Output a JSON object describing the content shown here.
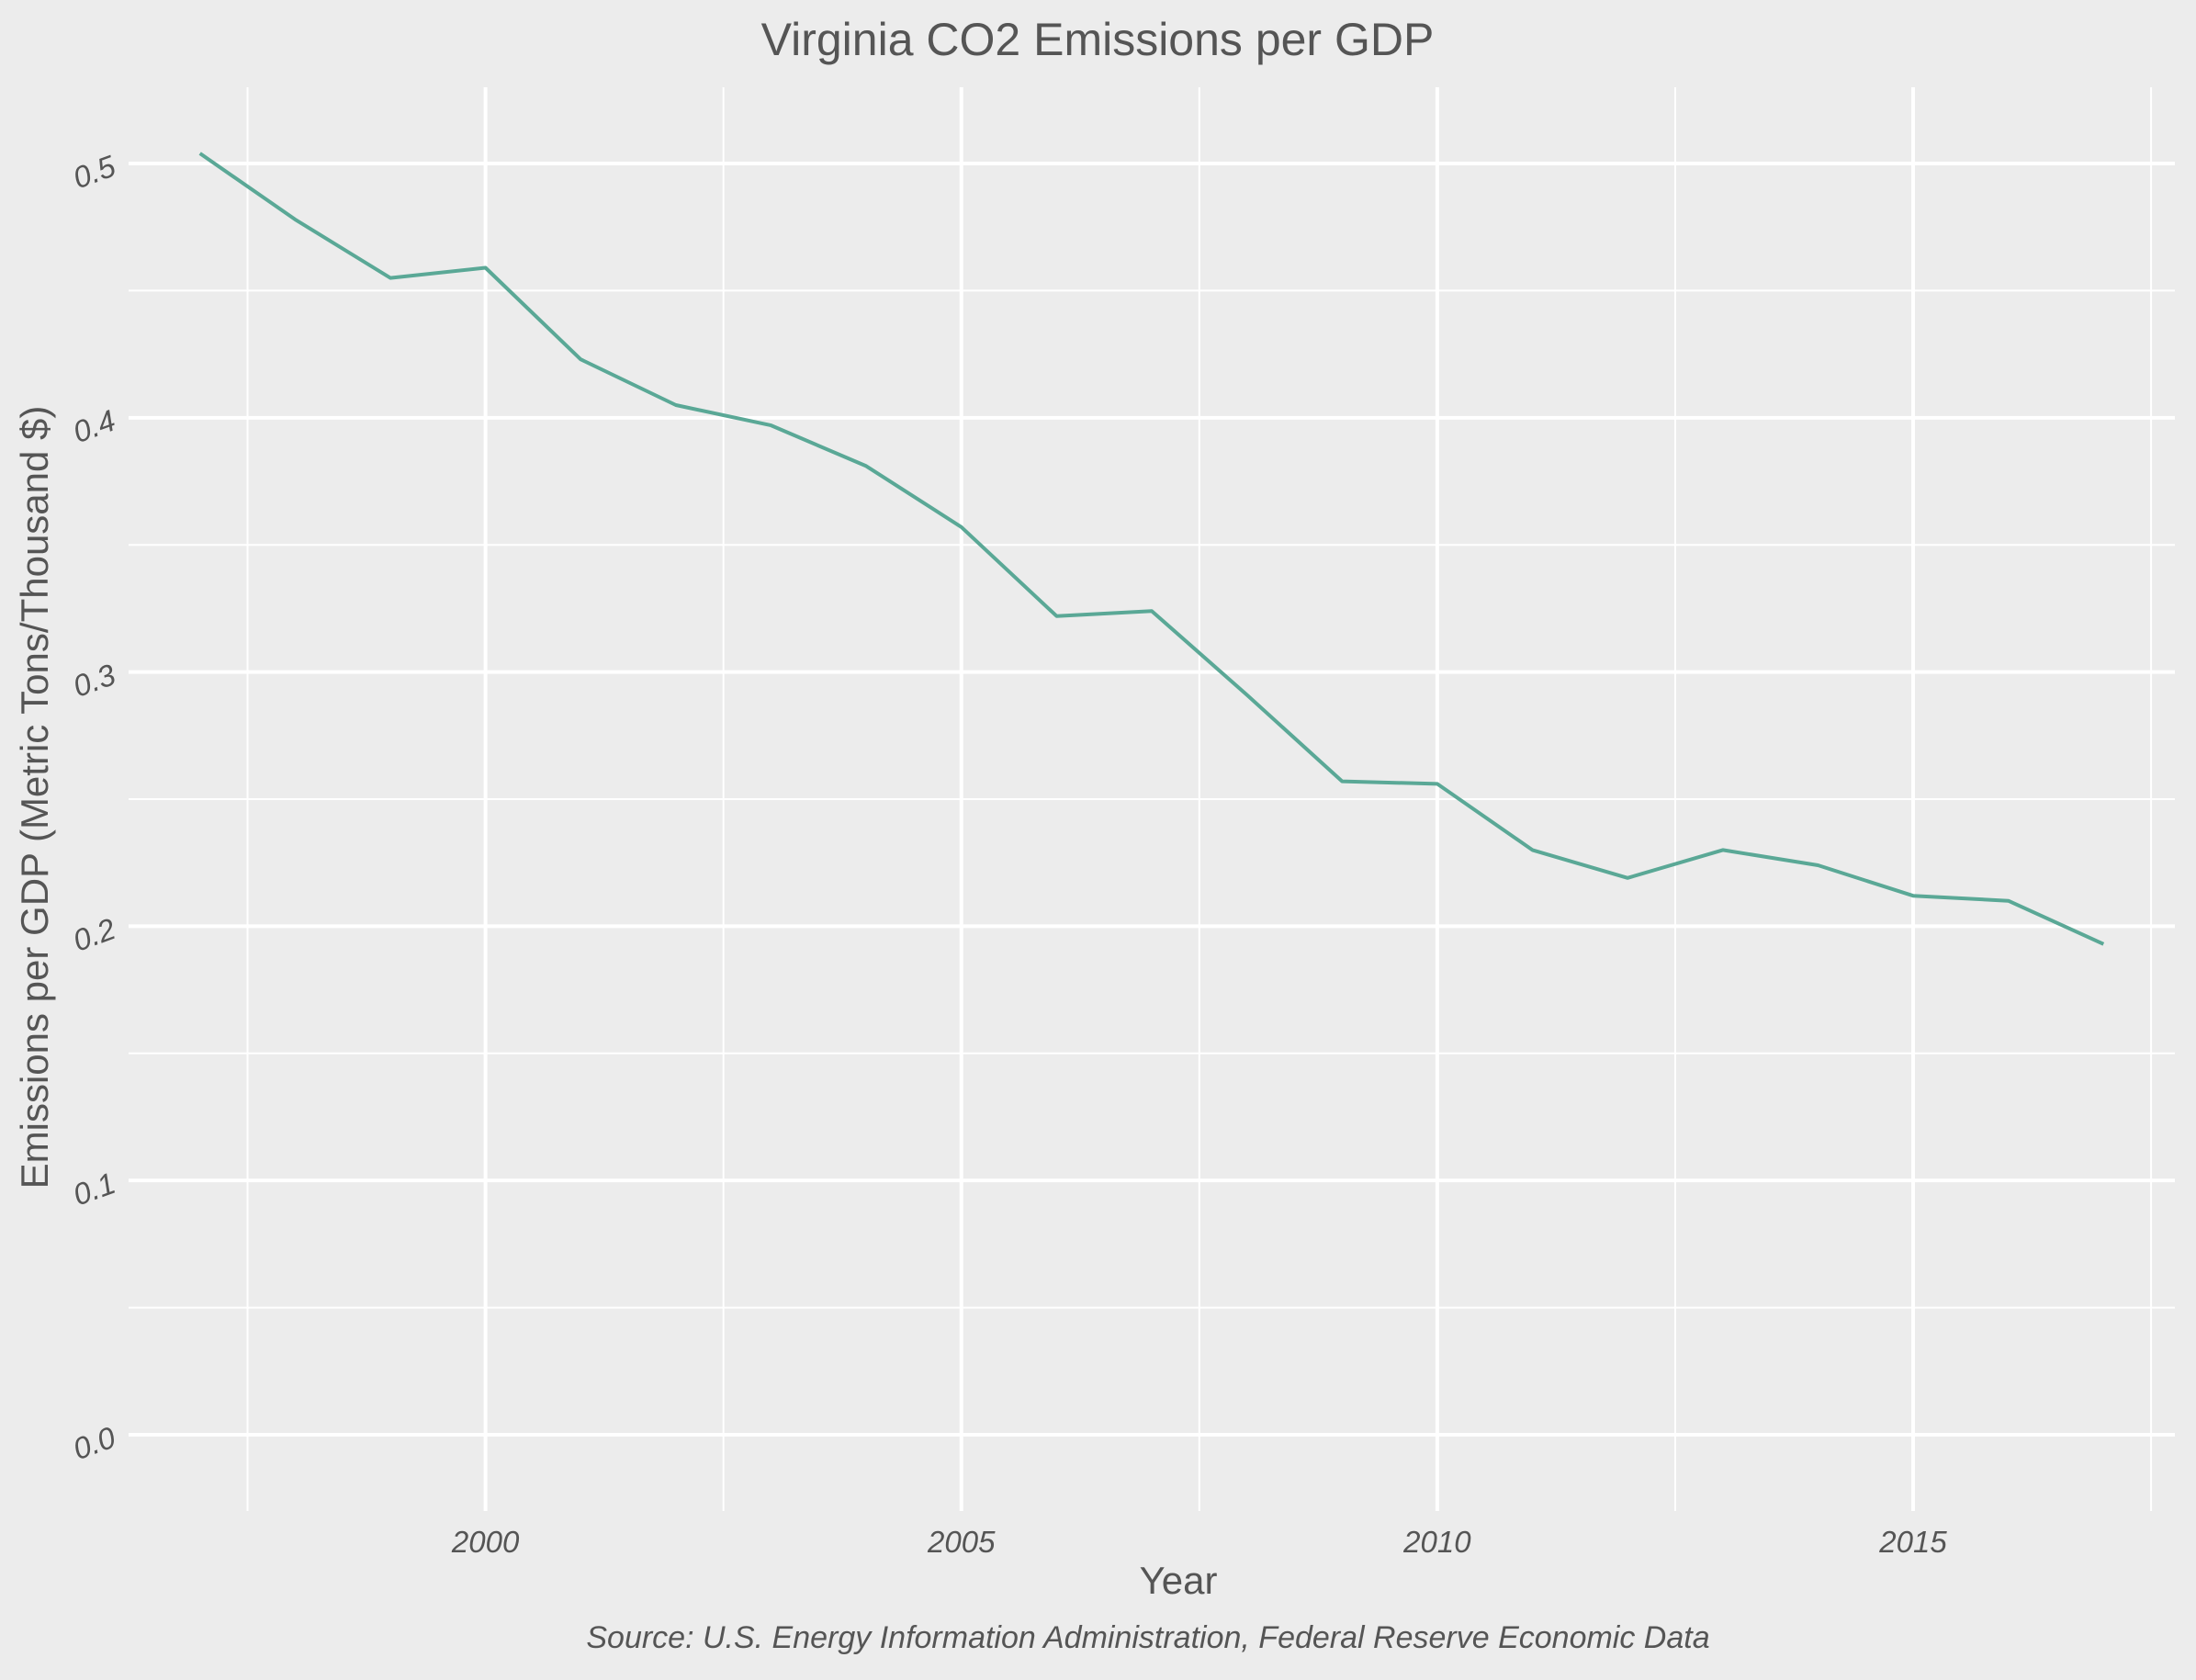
{
  "chart_data": {
    "type": "line",
    "title": "Virginia CO2 Emissions per GDP",
    "xlabel": "Year",
    "ylabel": "Emissions per GDP (Metric Tons/Thousand $)",
    "caption": "Source: U.S. Energy Information Administration, Federal Reserve Economic Data",
    "xlim": [
      1996.25,
      2017.75
    ],
    "ylim": [
      -0.03,
      0.53
    ],
    "x_ticks": [
      2000,
      2005,
      2010,
      2015
    ],
    "y_ticks": [
      0.0,
      0.1,
      0.2,
      0.3,
      0.4,
      0.5
    ],
    "x_tick_labels": [
      "2000",
      "2005",
      "2010",
      "2015"
    ],
    "y_tick_labels": [
      "0.0",
      "0.1",
      "0.2",
      "0.3",
      "0.4",
      "0.5"
    ],
    "grid": true,
    "line_color": "#5aa896",
    "background": "#ececec",
    "series": [
      {
        "x": [
          1997,
          1998,
          1999,
          2000,
          2001,
          2002,
          2003,
          2004,
          2005,
          2006,
          2007,
          2008,
          2009,
          2010,
          2011,
          2012,
          2013,
          2014,
          2015,
          2016,
          2017
        ],
        "values": [
          0.504,
          0.478,
          0.455,
          0.459,
          0.423,
          0.405,
          0.397,
          0.381,
          0.357,
          0.322,
          0.324,
          0.291,
          0.257,
          0.256,
          0.23,
          0.219,
          0.23,
          0.224,
          0.212,
          0.21,
          0.193
        ]
      }
    ]
  }
}
